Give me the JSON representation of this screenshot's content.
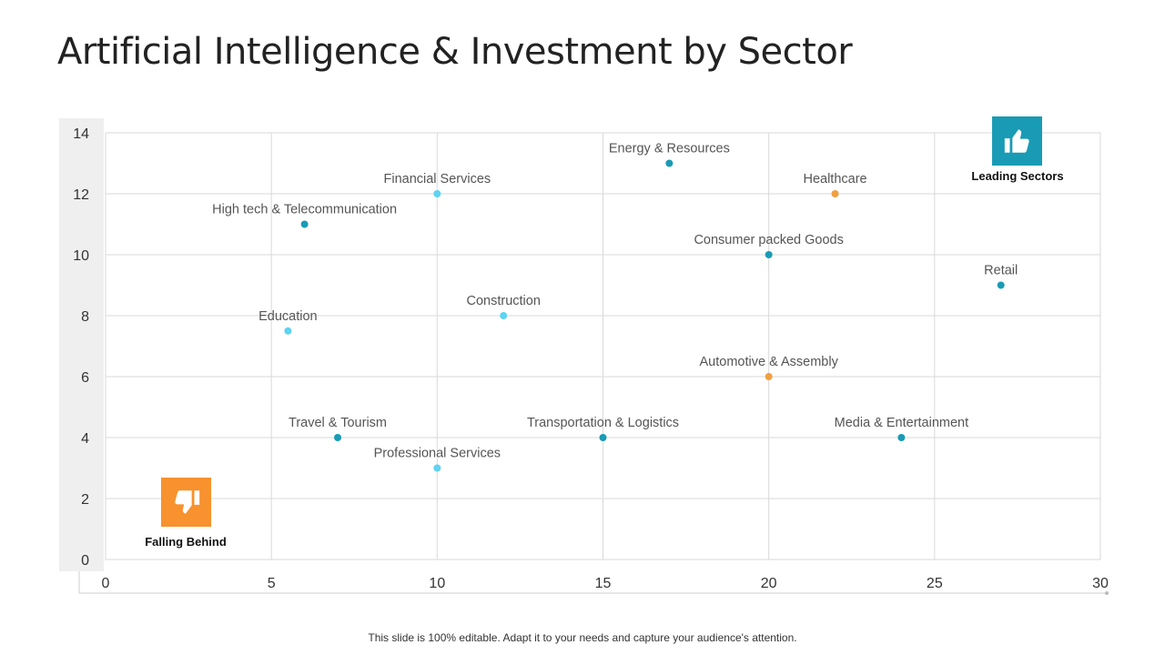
{
  "slide": {
    "title": "Artificial Intelligence & Investment by Sector",
    "footer": "This slide is 100% editable. Adapt it to your needs and capture your audience's attention."
  },
  "badges": {
    "leading": {
      "label": "Leading Sectors",
      "icon": "thumbs-up-icon",
      "color": "#1a9bb5"
    },
    "falling": {
      "label": "Falling Behind",
      "icon": "thumbs-down-icon",
      "color": "#f7922e"
    }
  },
  "colors": {
    "teal": "#1a9bb5",
    "light_blue": "#5ed3f2",
    "orange": "#f0a040",
    "grid": "#d9d9d9",
    "axis_band": "#efefef"
  },
  "chart_data": {
    "type": "scatter",
    "title": "",
    "xlabel": "",
    "ylabel": "",
    "xlim": [
      0,
      30
    ],
    "ylim": [
      0,
      14
    ],
    "x_ticks": [
      0,
      5,
      10,
      15,
      20,
      25,
      30
    ],
    "y_ticks": [
      0,
      2,
      4,
      6,
      8,
      10,
      12,
      14
    ],
    "grid": true,
    "points": [
      {
        "label": "Energy & Resources",
        "x": 17,
        "y": 13,
        "color": "#1a9bb5"
      },
      {
        "label": "Financial Services",
        "x": 10,
        "y": 12,
        "color": "#5ed3f2"
      },
      {
        "label": "Healthcare",
        "x": 22,
        "y": 12,
        "color": "#f0a040"
      },
      {
        "label": "High tech & Telecommunication",
        "x": 6,
        "y": 11,
        "color": "#1a9bb5"
      },
      {
        "label": "Consumer packed Goods",
        "x": 20,
        "y": 10,
        "color": "#1a9bb5"
      },
      {
        "label": "Retail",
        "x": 27,
        "y": 9,
        "color": "#1a9bb5"
      },
      {
        "label": "Construction",
        "x": 12,
        "y": 8,
        "color": "#5ed3f2"
      },
      {
        "label": "Education",
        "x": 5.5,
        "y": 7.5,
        "color": "#5ed3f2"
      },
      {
        "label": "Automotive & Assembly",
        "x": 20,
        "y": 6,
        "color": "#f0a040"
      },
      {
        "label": "Travel & Tourism",
        "x": 7,
        "y": 4,
        "color": "#1a9bb5"
      },
      {
        "label": "Transportation & Logistics",
        "x": 15,
        "y": 4,
        "color": "#1a9bb5"
      },
      {
        "label": "Media & Entertainment",
        "x": 24,
        "y": 4,
        "color": "#1a9bb5"
      },
      {
        "label": "Professional Services",
        "x": 10,
        "y": 3,
        "color": "#5ed3f2"
      }
    ]
  }
}
